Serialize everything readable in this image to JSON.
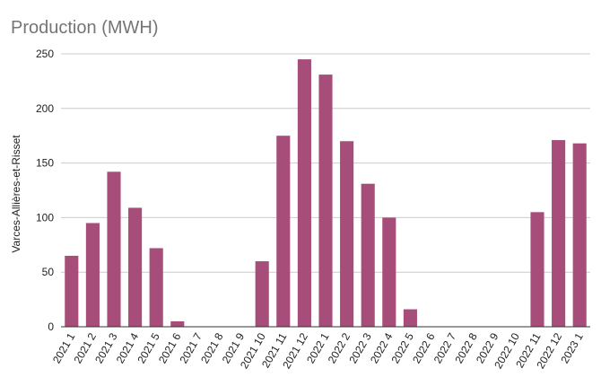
{
  "chart_data": {
    "type": "bar",
    "title": "Production (MWH)",
    "xlabel": "",
    "ylabel": "Varces-Allières-et-Risset",
    "ylim": [
      0,
      250
    ],
    "yticks": [
      0,
      50,
      100,
      150,
      200,
      250
    ],
    "grid": true,
    "bar_color": "#a64d79",
    "categories": [
      "2021 1",
      "2021 2",
      "2021 3",
      "2021 4",
      "2021 5",
      "2021 6",
      "2021 7",
      "2021 8",
      "2021 9",
      "2021 10",
      "2021 11",
      "2021 12",
      "2022 1",
      "2022 2",
      "2022 3",
      "2022 4",
      "2022 5",
      "2022 6",
      "2022 7",
      "2022 8",
      "2022 9",
      "2022 10",
      "2022 11",
      "2022 12",
      "2023 1"
    ],
    "values": [
      65,
      95,
      142,
      109,
      72,
      5,
      0,
      0,
      0,
      60,
      175,
      245,
      231,
      170,
      131,
      100,
      16,
      0,
      0,
      0,
      0,
      0,
      105,
      171,
      168
    ]
  }
}
